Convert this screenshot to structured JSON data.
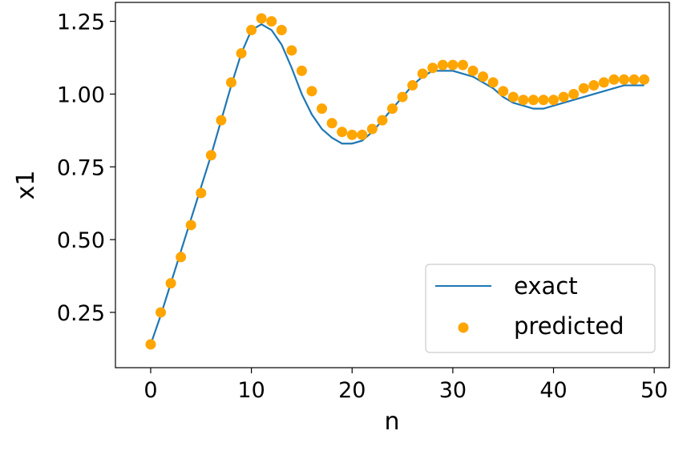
{
  "chart_data": {
    "type": "line",
    "xlabel": "n",
    "ylabel": "x1",
    "xlim": [
      -3.5,
      51.5
    ],
    "ylim": [
      0.06,
      1.315
    ],
    "x_ticks": [
      0,
      10,
      20,
      30,
      40,
      50
    ],
    "x_tick_labels": [
      "0",
      "10",
      "20",
      "30",
      "40",
      "50"
    ],
    "y_ticks": [
      0.25,
      0.5,
      0.75,
      1.0,
      1.25
    ],
    "y_tick_labels": [
      "0.25",
      "0.50",
      "0.75",
      "1.00",
      "1.25"
    ],
    "grid": false,
    "legend_position": "lower-right",
    "series": [
      {
        "name": "exact",
        "style": "line",
        "color": "#1f77b4",
        "x": [
          0,
          1,
          2,
          3,
          4,
          5,
          6,
          7,
          8,
          9,
          10,
          11,
          12,
          13,
          14,
          15,
          16,
          17,
          18,
          19,
          20,
          21,
          22,
          23,
          24,
          25,
          26,
          27,
          28,
          29,
          30,
          31,
          32,
          33,
          34,
          35,
          36,
          37,
          38,
          39,
          40,
          41,
          42,
          43,
          44,
          45,
          46,
          47,
          48,
          49
        ],
        "y": [
          0.14,
          0.24,
          0.35,
          0.46,
          0.57,
          0.68,
          0.79,
          0.91,
          1.03,
          1.14,
          1.22,
          1.24,
          1.22,
          1.17,
          1.09,
          1.0,
          0.93,
          0.88,
          0.85,
          0.83,
          0.83,
          0.84,
          0.87,
          0.91,
          0.95,
          0.99,
          1.03,
          1.06,
          1.08,
          1.08,
          1.08,
          1.07,
          1.06,
          1.04,
          1.02,
          0.99,
          0.97,
          0.96,
          0.95,
          0.95,
          0.96,
          0.97,
          0.98,
          0.99,
          1.0,
          1.01,
          1.02,
          1.03,
          1.03,
          1.03
        ]
      },
      {
        "name": "predicted",
        "style": "scatter",
        "color": "#ffa500",
        "x": [
          0,
          1,
          2,
          3,
          4,
          5,
          6,
          7,
          8,
          9,
          10,
          11,
          12,
          13,
          14,
          15,
          16,
          17,
          18,
          19,
          20,
          21,
          22,
          23,
          24,
          25,
          26,
          27,
          28,
          29,
          30,
          31,
          32,
          33,
          34,
          35,
          36,
          37,
          38,
          39,
          40,
          41,
          42,
          43,
          44,
          45,
          46,
          47,
          48,
          49
        ],
        "y": [
          0.14,
          0.25,
          0.35,
          0.44,
          0.55,
          0.66,
          0.79,
          0.91,
          1.04,
          1.14,
          1.22,
          1.26,
          1.25,
          1.22,
          1.15,
          1.08,
          1.01,
          0.95,
          0.9,
          0.87,
          0.86,
          0.86,
          0.88,
          0.91,
          0.95,
          0.99,
          1.03,
          1.07,
          1.09,
          1.1,
          1.1,
          1.1,
          1.08,
          1.06,
          1.04,
          1.01,
          0.99,
          0.98,
          0.98,
          0.98,
          0.98,
          0.99,
          1.0,
          1.02,
          1.03,
          1.04,
          1.05,
          1.05,
          1.05,
          1.05
        ]
      }
    ]
  }
}
